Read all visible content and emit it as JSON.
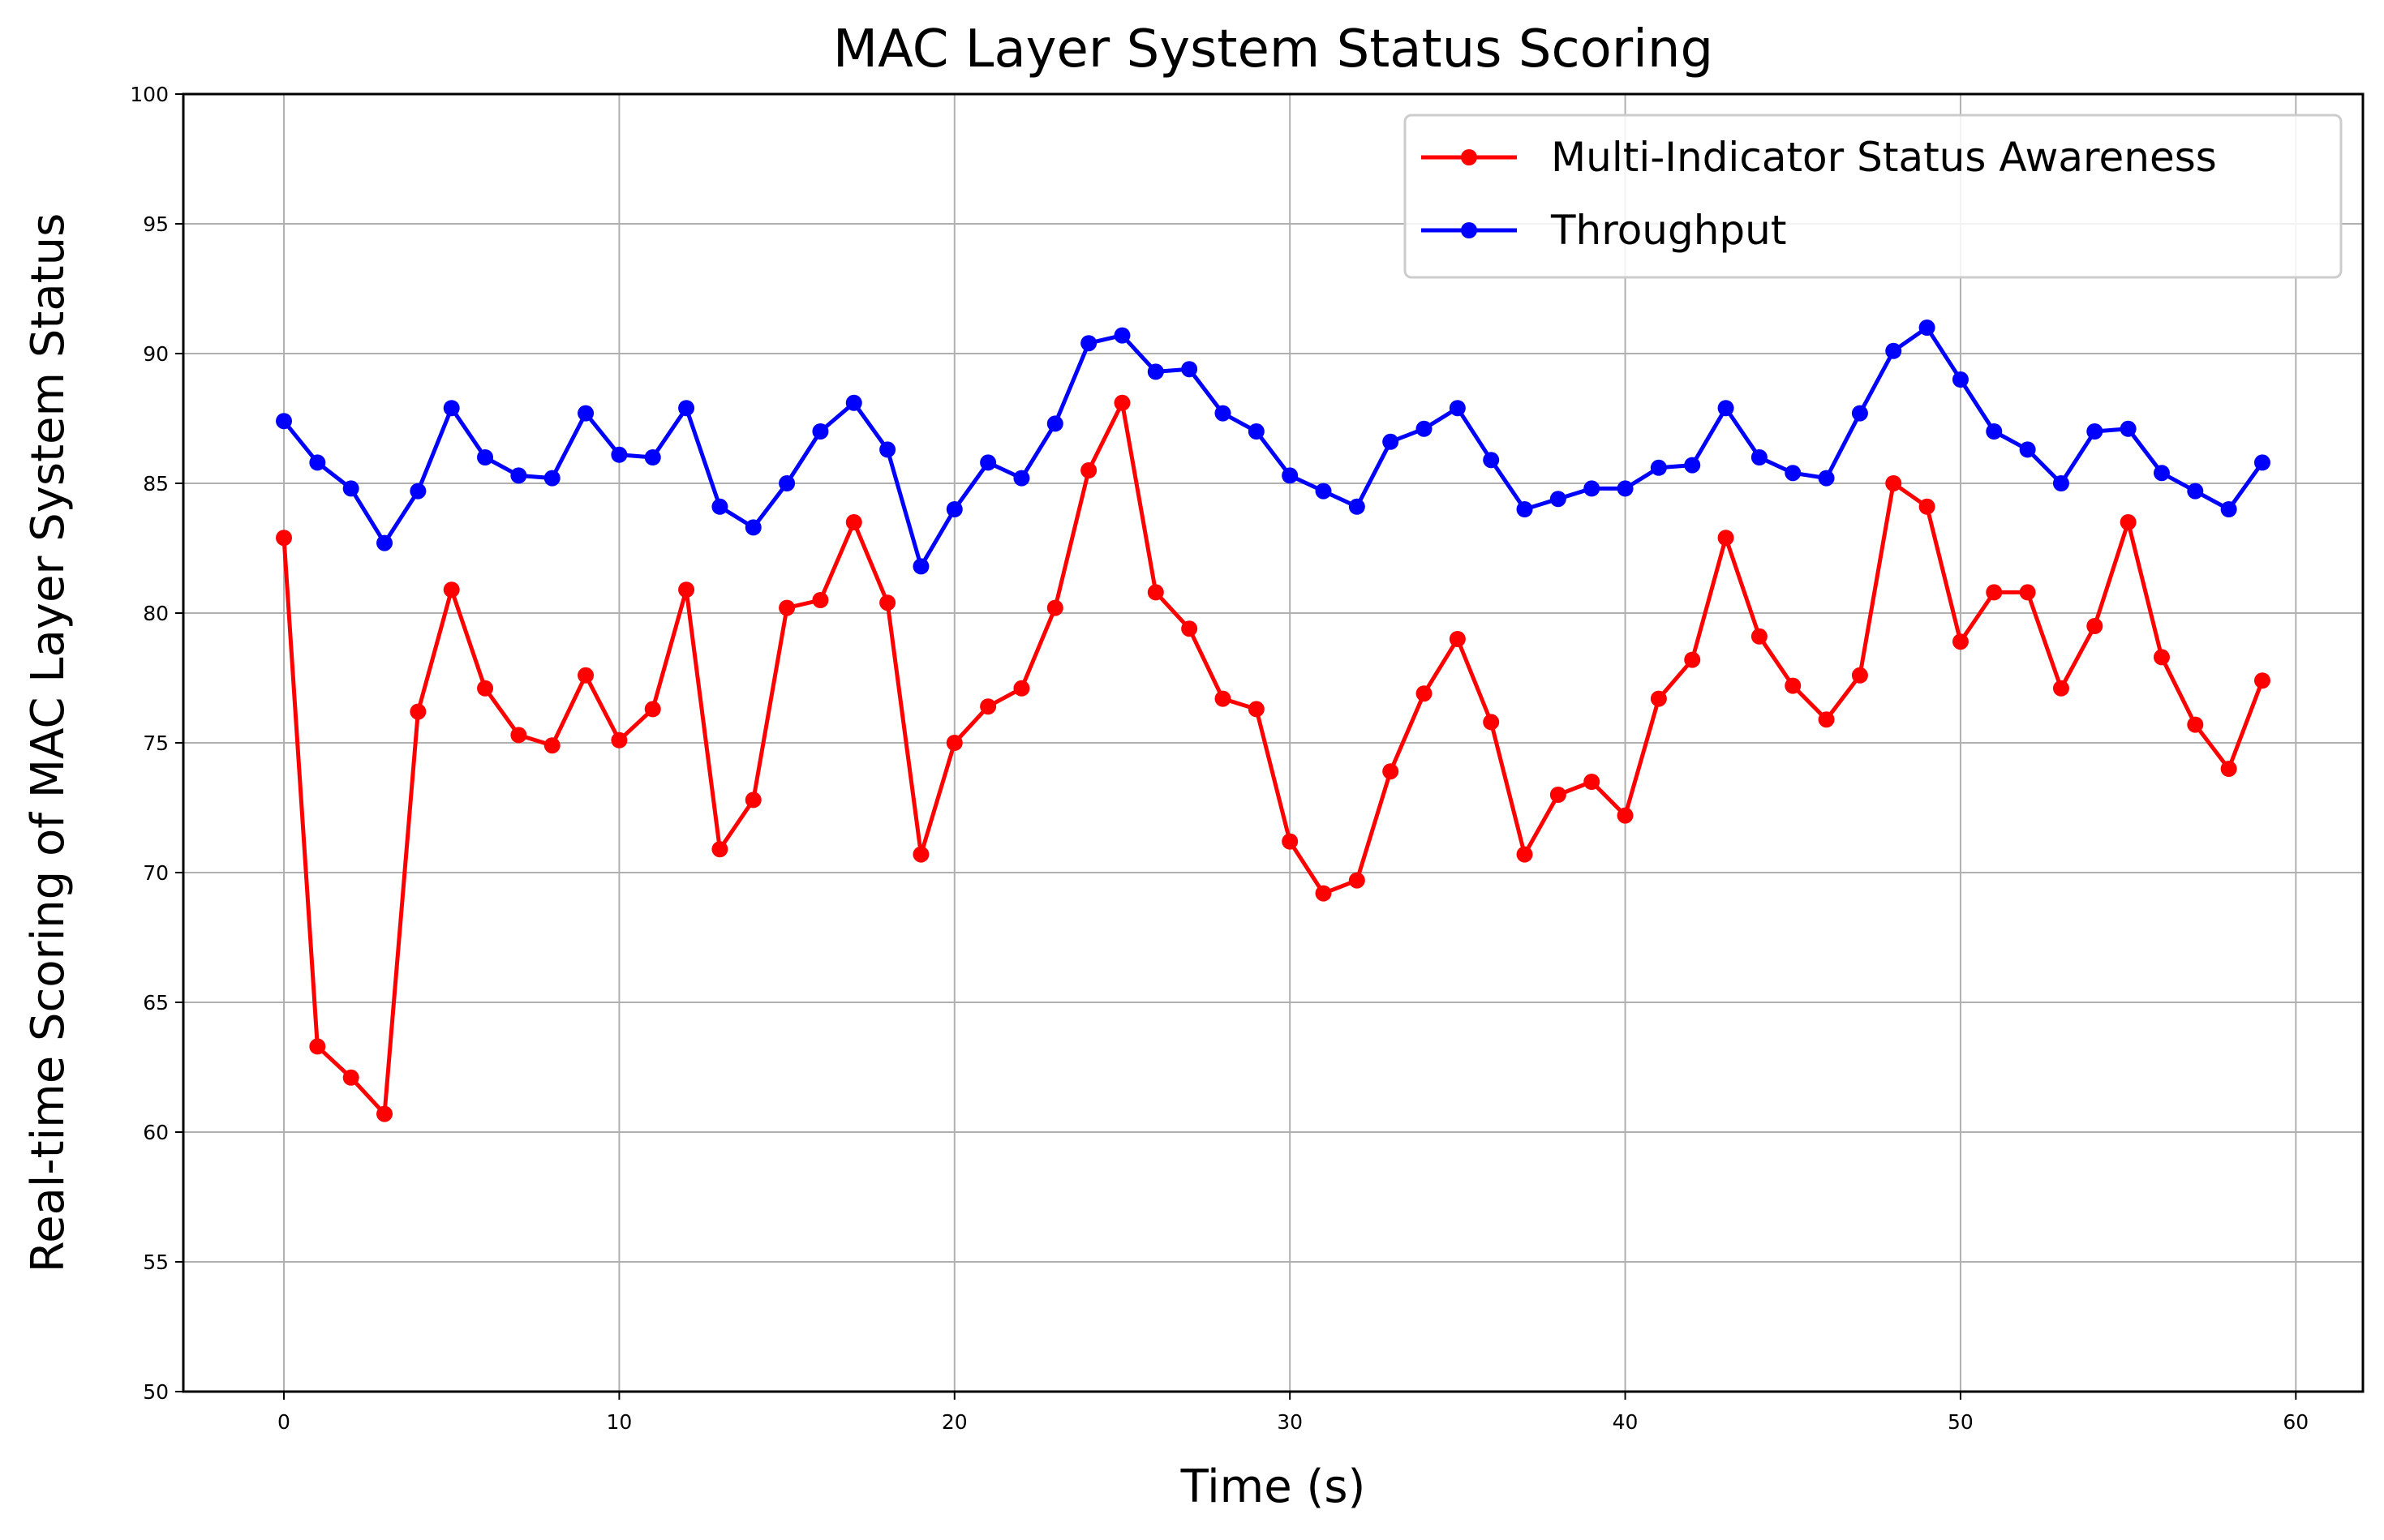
{
  "chart_data": {
    "type": "line",
    "title": "MAC Layer System Status Scoring",
    "xlabel": "Time (s)",
    "ylabel": "Real-time Scoring of MAC Layer System Status",
    "xlim": [
      -3,
      62
    ],
    "ylim": [
      50,
      100
    ],
    "xticks": [
      0,
      10,
      20,
      30,
      40,
      50,
      60
    ],
    "yticks": [
      50,
      55,
      60,
      65,
      70,
      75,
      80,
      85,
      90,
      95,
      100
    ],
    "grid": true,
    "legend_position": "top-right",
    "x": [
      0,
      1,
      2,
      3,
      4,
      5,
      6,
      7,
      8,
      9,
      10,
      11,
      12,
      13,
      14,
      15,
      16,
      17,
      18,
      19,
      20,
      21,
      22,
      23,
      24,
      25,
      26,
      27,
      28,
      29,
      30,
      31,
      32,
      33,
      34,
      35,
      36,
      37,
      38,
      39,
      40,
      41,
      42,
      43,
      44,
      45,
      46,
      47,
      48,
      49,
      50,
      51,
      52,
      53,
      54,
      55,
      56,
      57,
      58,
      59
    ],
    "series": [
      {
        "name": "Multi-Indicator Status Awareness",
        "color": "#ff0000",
        "values": [
          82.9,
          63.3,
          62.1,
          60.7,
          76.2,
          80.9,
          77.1,
          75.3,
          74.9,
          77.6,
          75.1,
          76.3,
          80.9,
          70.9,
          72.8,
          80.2,
          80.5,
          83.5,
          80.4,
          70.7,
          75.0,
          76.4,
          77.1,
          80.2,
          85.5,
          88.1,
          80.8,
          79.4,
          76.7,
          76.3,
          71.2,
          69.2,
          69.7,
          73.9,
          76.9,
          79.0,
          75.8,
          70.7,
          73.0,
          73.5,
          72.2,
          76.7,
          78.2,
          82.9,
          79.1,
          77.2,
          75.9,
          77.6,
          85.0,
          84.1,
          78.9,
          80.8,
          80.8,
          77.1,
          79.5,
          83.5,
          78.3,
          75.7,
          74.0,
          77.4
        ]
      },
      {
        "name": "Throughput",
        "color": "#0000ff",
        "values": [
          87.4,
          85.8,
          84.8,
          82.7,
          84.7,
          87.9,
          86.0,
          85.3,
          85.2,
          87.7,
          86.1,
          86.0,
          87.9,
          84.1,
          83.3,
          85.0,
          87.0,
          88.1,
          86.3,
          81.8,
          84.0,
          85.8,
          85.2,
          87.3,
          90.4,
          90.7,
          89.3,
          89.4,
          87.7,
          87.0,
          85.3,
          84.7,
          84.1,
          86.6,
          87.1,
          87.9,
          85.9,
          84.0,
          84.4,
          84.8,
          84.8,
          85.6,
          85.7,
          87.9,
          86.0,
          85.4,
          85.2,
          87.7,
          90.1,
          91.0,
          89.0,
          87.0,
          86.3,
          85.0,
          87.0,
          87.1,
          85.4,
          84.7,
          84.0,
          85.8
        ]
      }
    ]
  }
}
